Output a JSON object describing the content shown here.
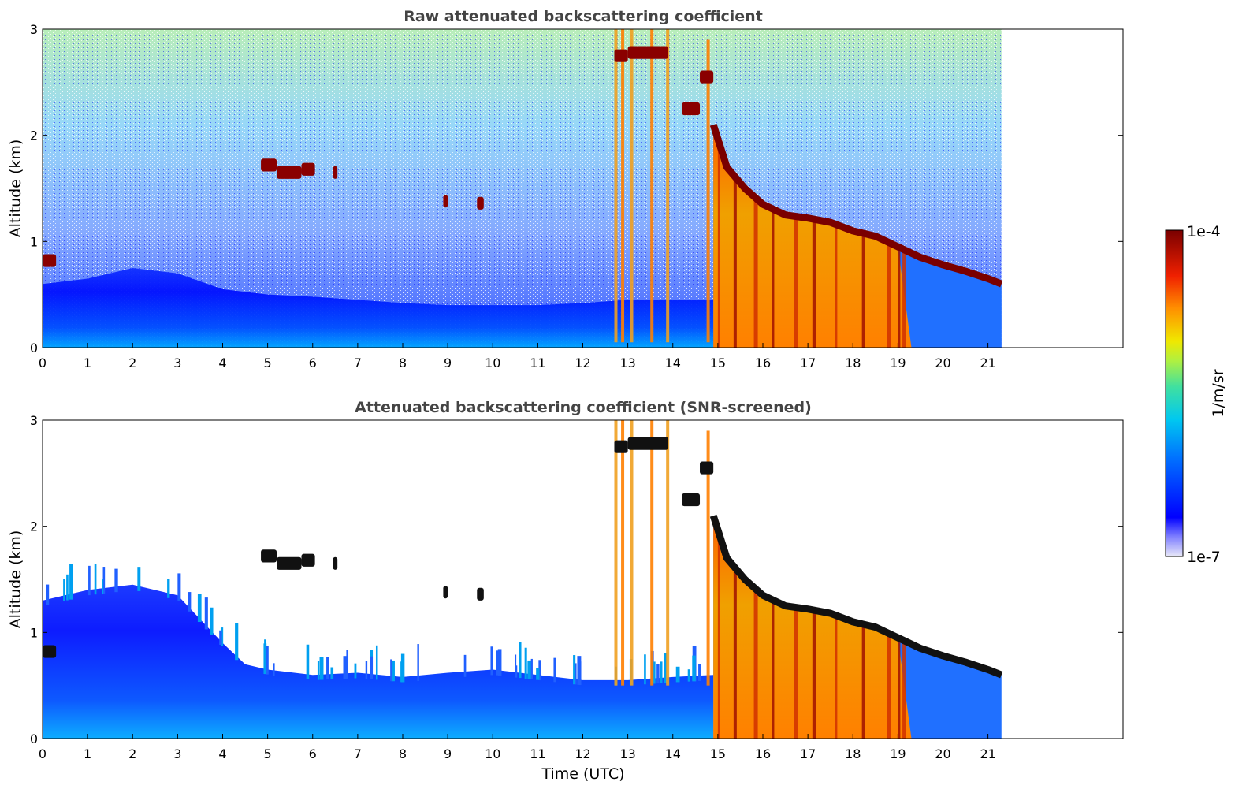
{
  "colors": {
    "title": "#444444",
    "colormap": [
      "#e8e8f8",
      "#0000ff",
      "#0080ff",
      "#00d8e0",
      "#60e060",
      "#f0e000",
      "#ff8000",
      "#e82000",
      "#800000"
    ],
    "cloud_core": "#111111"
  },
  "colorbar": {
    "max_label": "1e-4",
    "min_label": "1e-7",
    "unit": "1/m/sr",
    "scale": "log"
  },
  "chart_data": [
    {
      "type": "heatmap",
      "title": "Raw attenuated backscattering coefficient",
      "xlabel": "",
      "ylabel": "Altitude (km)",
      "xlim": [
        0,
        24
      ],
      "ylim": [
        0,
        3
      ],
      "x_ticks": [
        "0",
        "1",
        "2",
        "3",
        "4",
        "5",
        "6",
        "7",
        "8",
        "9",
        "10",
        "11",
        "12",
        "13",
        "14",
        "15",
        "16",
        "17",
        "18",
        "19",
        "20",
        "21"
      ],
      "y_ticks": [
        "0",
        "1",
        "2",
        "3"
      ],
      "data_extent_x": [
        0,
        21.3
      ],
      "features": {
        "boundary_layer_top_km": [
          [
            0,
            0.6
          ],
          [
            1,
            0.65
          ],
          [
            2,
            0.75
          ],
          [
            3,
            0.7
          ],
          [
            4,
            0.55
          ],
          [
            5,
            0.5
          ],
          [
            6,
            0.48
          ],
          [
            7,
            0.45
          ],
          [
            8,
            0.42
          ],
          [
            9,
            0.4
          ],
          [
            10,
            0.4
          ],
          [
            11,
            0.4
          ],
          [
            12,
            0.42
          ],
          [
            13,
            0.45
          ],
          [
            14,
            0.45
          ],
          [
            14.9,
            0.45
          ]
        ],
        "cloud_layer_km": [
          [
            14.9,
            2.1
          ],
          [
            15.2,
            1.7
          ],
          [
            15.6,
            1.5
          ],
          [
            16,
            1.35
          ],
          [
            16.5,
            1.25
          ],
          [
            17,
            1.22
          ],
          [
            17.5,
            1.18
          ],
          [
            18,
            1.1
          ],
          [
            18.5,
            1.05
          ],
          [
            19,
            0.95
          ],
          [
            19.5,
            0.85
          ],
          [
            20,
            0.78
          ],
          [
            20.5,
            0.72
          ],
          [
            21,
            0.65
          ],
          [
            21.3,
            0.6
          ]
        ],
        "cloud_patches": [
          {
            "x": [
              4.85,
              5.2
            ],
            "y": 1.72
          },
          {
            "x": [
              5.2,
              5.75
            ],
            "y": 1.65
          },
          {
            "x": [
              5.75,
              6.05
            ],
            "y": 1.68
          },
          {
            "x": [
              6.45,
              6.55
            ],
            "y": 1.65
          },
          {
            "x": [
              8.9,
              9.0
            ],
            "y": 1.38
          },
          {
            "x": [
              9.65,
              9.8
            ],
            "y": 1.36
          },
          {
            "x": [
              0,
              0.3
            ],
            "y": 0.82
          },
          {
            "x": [
              12.7,
              13.0
            ],
            "y": 2.75
          },
          {
            "x": [
              13.0,
              13.9
            ],
            "y": 2.78
          },
          {
            "x": [
              14.2,
              14.6
            ],
            "y": 2.25
          },
          {
            "x": [
              14.6,
              14.9
            ],
            "y": 2.55
          }
        ],
        "precipitation_columns_utc": [
          12.7,
          12.85,
          13.05,
          13.5,
          13.85,
          14.75,
          15.0,
          15.35,
          15.8,
          16.2,
          16.7,
          17.1,
          17.6,
          18.2,
          18.75,
          19.0,
          19.1
        ]
      }
    },
    {
      "type": "heatmap",
      "title": "Attenuated backscattering coefficient (SNR-screened)",
      "xlabel": "Time (UTC)",
      "ylabel": "Altitude (km)",
      "xlim": [
        0,
        24
      ],
      "ylim": [
        0,
        3
      ],
      "x_ticks": [
        "0",
        "1",
        "2",
        "3",
        "4",
        "5",
        "6",
        "7",
        "8",
        "9",
        "10",
        "11",
        "12",
        "13",
        "14",
        "15",
        "16",
        "17",
        "18",
        "19",
        "20",
        "21"
      ],
      "y_ticks": [
        "0",
        "1",
        "2",
        "3"
      ],
      "data_extent_x": [
        0,
        21.3
      ],
      "features": {
        "screened_signal_top_km": [
          [
            0,
            1.3
          ],
          [
            1,
            1.4
          ],
          [
            2,
            1.45
          ],
          [
            3,
            1.35
          ],
          [
            4,
            0.9
          ],
          [
            4.5,
            0.7
          ],
          [
            5,
            0.65
          ],
          [
            6,
            0.6
          ],
          [
            7,
            0.62
          ],
          [
            8,
            0.58
          ],
          [
            9,
            0.62
          ],
          [
            10,
            0.65
          ],
          [
            11,
            0.6
          ],
          [
            12,
            0.55
          ],
          [
            13,
            0.55
          ],
          [
            14,
            0.58
          ],
          [
            14.9,
            0.6
          ]
        ],
        "cloud_layer_km": [
          [
            14.9,
            2.1
          ],
          [
            15.2,
            1.7
          ],
          [
            15.6,
            1.5
          ],
          [
            16,
            1.35
          ],
          [
            16.5,
            1.25
          ],
          [
            17,
            1.22
          ],
          [
            17.5,
            1.18
          ],
          [
            18,
            1.1
          ],
          [
            18.5,
            1.05
          ],
          [
            19,
            0.95
          ],
          [
            19.5,
            0.85
          ],
          [
            20,
            0.78
          ],
          [
            20.5,
            0.72
          ],
          [
            21,
            0.65
          ],
          [
            21.3,
            0.6
          ]
        ]
      }
    }
  ]
}
